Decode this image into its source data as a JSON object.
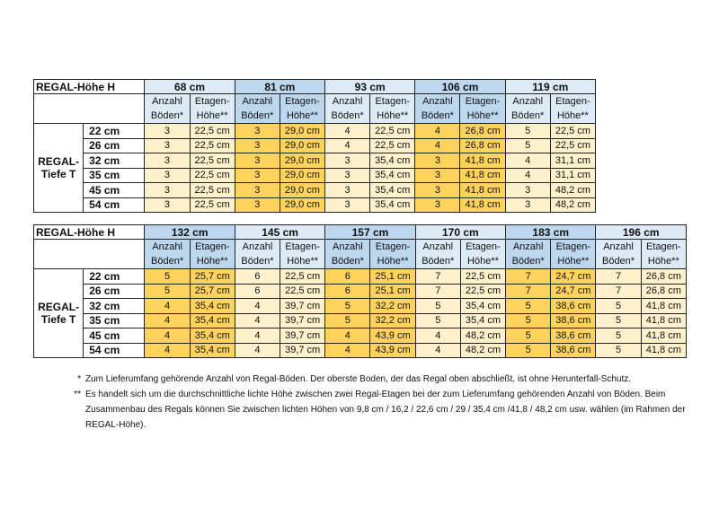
{
  "colors": {
    "header_light": "#ddebf7",
    "header_dark": "#bdd7ee",
    "cell_light": "#fff1cc",
    "cell_dark": "#ffd35c"
  },
  "table_common": {
    "corner_label": "REGAL-Höhe H",
    "row_group_label_1": "REGAL-",
    "row_group_label_2": "Tiefe T",
    "sub_a_1": "Anzahl",
    "sub_a_2": "Böden*",
    "sub_b_1": "Etagen-",
    "sub_b_2": "Höhe**",
    "depths": [
      "22 cm",
      "26 cm",
      "32 cm",
      "35 cm",
      "45 cm",
      "54 cm"
    ]
  },
  "tables": [
    {
      "groups": [
        {
          "height": "68 cm",
          "shade": "light",
          "boeden": [
            "3",
            "3",
            "3",
            "3",
            "3",
            "3"
          ],
          "etage": [
            "22,5 cm",
            "22,5 cm",
            "22,5 cm",
            "22,5 cm",
            "22,5 cm",
            "22,5 cm"
          ]
        },
        {
          "height": "81 cm",
          "shade": "dark",
          "boeden": [
            "3",
            "3",
            "3",
            "3",
            "3",
            "3"
          ],
          "etage": [
            "29,0 cm",
            "29,0 cm",
            "29,0 cm",
            "29,0 cm",
            "29,0 cm",
            "29,0 cm"
          ]
        },
        {
          "height": "93 cm",
          "shade": "light",
          "boeden": [
            "4",
            "4",
            "3",
            "3",
            "3",
            "3"
          ],
          "etage": [
            "22,5 cm",
            "22,5 cm",
            "35,4 cm",
            "35,4 cm",
            "35,4 cm",
            "35,4 cm"
          ]
        },
        {
          "height": "106 cm",
          "shade": "dark",
          "boeden": [
            "4",
            "4",
            "3",
            "3",
            "3",
            "3"
          ],
          "etage": [
            "26,8 cm",
            "26,8 cm",
            "41,8 cm",
            "41,8 cm",
            "41,8 cm",
            "41,8 cm"
          ]
        },
        {
          "height": "119 cm",
          "shade": "light",
          "boeden": [
            "5",
            "5",
            "4",
            "4",
            "3",
            "3"
          ],
          "etage": [
            "22,5 cm",
            "22,5 cm",
            "31,1 cm",
            "31,1 cm",
            "48,2 cm",
            "48,2 cm"
          ]
        }
      ]
    },
    {
      "groups": [
        {
          "height": "132 cm",
          "shade": "dark",
          "boeden": [
            "5",
            "5",
            "4",
            "4",
            "4",
            "4"
          ],
          "etage": [
            "25,7 cm",
            "25,7 cm",
            "35,4 cm",
            "35,4 cm",
            "35,4 cm",
            "35,4 cm"
          ]
        },
        {
          "height": "145 cm",
          "shade": "light",
          "boeden": [
            "6",
            "6",
            "4",
            "4",
            "4",
            "4"
          ],
          "etage": [
            "22,5 cm",
            "22,5 cm",
            "39,7 cm",
            "39,7 cm",
            "39,7 cm",
            "39,7 cm"
          ]
        },
        {
          "height": "157 cm",
          "shade": "dark",
          "boeden": [
            "6",
            "6",
            "5",
            "5",
            "4",
            "4"
          ],
          "etage": [
            "25,1 cm",
            "25,1 cm",
            "32,2 cm",
            "32,2 cm",
            "43,9 cm",
            "43,9 cm"
          ]
        },
        {
          "height": "170 cm",
          "shade": "light",
          "boeden": [
            "7",
            "7",
            "5",
            "5",
            "4",
            "4"
          ],
          "etage": [
            "22,5 cm",
            "22,5 cm",
            "35,4 cm",
            "35,4 cm",
            "48,2 cm",
            "48,2 cm"
          ]
        },
        {
          "height": "183 cm",
          "shade": "dark",
          "boeden": [
            "7",
            "7",
            "5",
            "5",
            "5",
            "5"
          ],
          "etage": [
            "24,7 cm",
            "24,7 cm",
            "38,6 cm",
            "38,6 cm",
            "38,6 cm",
            "38,6 cm"
          ]
        },
        {
          "height": "196 cm",
          "shade": "light",
          "boeden": [
            "7",
            "7",
            "5",
            "5",
            "5",
            "5"
          ],
          "etage": [
            "26,8 cm",
            "26,8 cm",
            "41,8 cm",
            "41,8 cm",
            "41,8 cm",
            "41,8 cm"
          ]
        }
      ]
    }
  ],
  "footnotes": [
    {
      "mark": "*",
      "text": "Zum Lieferumfang gehörende Anzahl von Regal-Böden. Der oberste Boden, der das Regal oben abschließt, ist ohne Herunterfall-Schutz."
    },
    {
      "mark": "**",
      "text": "Es handelt sich um die durchschnittliche lichte Höhe zwischen zwei Regal-Etagen bei der zum Lieferumfang gehörenden Anzahl von  Böden. Beim Zusammenbau des Regals können Sie zwischen lichten Höhen von 9,8 cm / 16,2 / 22,6 cm / 29 / 35,4 cm /41,8 / 48,2 cm usw. wählen (im Rahmen der REGAL-Höhe)."
    }
  ]
}
